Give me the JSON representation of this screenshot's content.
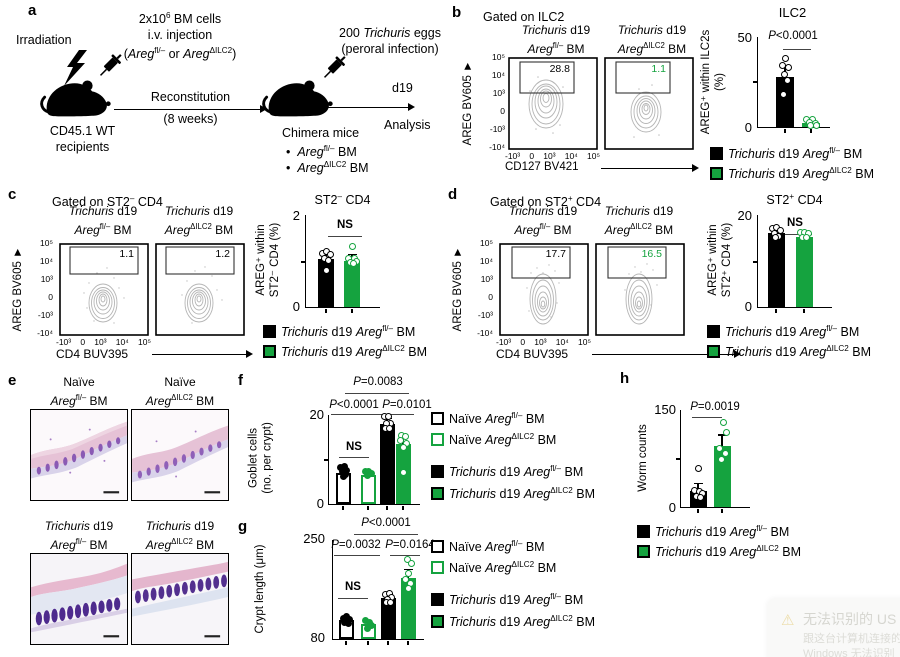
{
  "panel_labels": {
    "a": "a",
    "b": "b",
    "c": "c",
    "d": "d",
    "e": "e",
    "f": "f",
    "g": "g",
    "h": "h"
  },
  "colors": {
    "green": "#15a33f",
    "black": "#000000"
  },
  "panel_a": {
    "irradiation": "Irradiation",
    "injection": "2x10<sup>6</sup> BM cells<br>i.v. injection<br>(<i>Areg</i><sup>fl/–</sup> or <i>Areg</i><sup>ΔILC2</sup>)",
    "reconstitution_top": "Reconstitution",
    "reconstitution_bottom": "(8 weeks)",
    "recipients": "CD45.1 WT<br>recipients",
    "eggs": "200 <i>Trichuris</i> eggs<br>(peroral infection)",
    "d19": "d19",
    "analysis": "Analysis",
    "chimera_title": "Chimera mice",
    "chimera_bullet": "•",
    "chimera_item1": "<i>Areg</i><sup>fl/–</sup> BM",
    "chimera_item2": "<i>Areg</i><sup>ΔILC2</sup> BM"
  },
  "flow_titles": {
    "fl": "<i>Trichuris</i> d19<br><i>Areg</i><sup>fl/–</sup> BM",
    "dilc2": "<i>Trichuris</i> d19<br><i>Areg</i><sup>ΔILC2</sup> BM"
  },
  "panel_b": {
    "gated": "Gated on ILC2",
    "gate_fl": "28.8",
    "gate_dilc2": "1.1",
    "ylabel": "AREG BV605 ►",
    "xlabel": "CD127 BV421",
    "yticks": [
      "10⁵",
      "10⁴",
      "10³",
      "0",
      "-10³",
      "-10⁴"
    ],
    "xticks": [
      "-10³",
      "0",
      "10³",
      "10⁴",
      "10⁵"
    ]
  },
  "panel_c": {
    "gated": "Gated on ST2<sup>–</sup> CD4",
    "gate_fl": "1.1",
    "gate_dilc2": "1.2",
    "ylabel": "AREG BV605 ►",
    "xlabel": "CD4 BUV395",
    "yticks": [
      "10⁵",
      "10⁴",
      "10³",
      "0",
      "-10³",
      "-10⁴"
    ],
    "xticks": [
      "-10³",
      "0",
      "10³",
      "10⁴",
      "10⁵"
    ]
  },
  "panel_d": {
    "gated": "Gated on ST2<sup>+</sup> CD4",
    "gate_fl": "17.7",
    "gate_dilc2": "16.5",
    "ylabel": "AREG BV605 ►",
    "xlabel": "CD4 BUV395",
    "yticks": [
      "10⁵",
      "10⁴",
      "10³",
      "0",
      "-10³",
      "-10⁴"
    ],
    "xticks": [
      "-10³",
      "0",
      "10³",
      "10⁴",
      "10⁵"
    ]
  },
  "panel_e": {
    "title_naive_fl": "Naïve<br><i>Areg</i><sup>fl/–</sup> BM",
    "title_naive_dilc2": "Naïve<br><i>Areg</i><sup>ΔILC2</sup> BM",
    "title_tri_fl": "<i>Trichuris</i> d19<br><i>Areg</i><sup>fl/–</sup> BM",
    "title_tri_dilc2": "<i>Trichuris</i> d19<br><i>Areg</i><sup>ΔILC2</sup> BM"
  },
  "legend2": {
    "black": "<i>Trichuris</i> d19 <i>Areg</i><sup>fl/–</sup> BM",
    "green": "<i>Trichuris</i> d19 <i>Areg</i><sup>ΔILC2</sup> BM"
  },
  "legend4": {
    "naive_black": "Naïve <i>Areg</i><sup>fl/–</sup> BM",
    "naive_green": "Naïve <i>Areg</i><sup>ΔILC2</sup> BM",
    "tri_black": "<i>Trichuris</i> d19 <i>Areg</i><sup>fl/–</sup> BM",
    "tri_green": "<i>Trichuris</i> d19 <i>Areg</i><sup>ΔILC2</sup> BM"
  },
  "chart_data": {
    "b": {
      "type": "bar",
      "title": "ILC2",
      "ylabel": "AREG⁺ within ILC2s<br>(%)",
      "ylim": [
        0,
        50
      ],
      "yticks": [
        "50",
        "0"
      ],
      "sig": "<i>P</i>&lt;0.0001",
      "categories": [
        "Trichuris d19 Areg fl/- BM",
        "Trichuris d19 Areg dILC2 BM"
      ],
      "values": [
        28,
        1.5
      ],
      "centers": [
        27,
        53
      ],
      "barw": 18,
      "bars": [
        {
          "value": 28,
          "err": 33,
          "fill": "#000000",
          "stroke": "#000000",
          "dotFill": "#ffffff",
          "dotStroke": "#000000",
          "dots": [
            [
              0,
              38
            ],
            [
              -3,
              34
            ],
            [
              3,
              33
            ],
            [
              -1,
              29
            ],
            [
              2,
              26
            ],
            [
              -2,
              18
            ]
          ]
        },
        {
          "value": 1.5,
          "err": null,
          "fill": "#15a33f",
          "stroke": "#15a33f",
          "dotFill": "#ffffff",
          "dotStroke": "#15a33f",
          "dots": [
            [
              -5,
              4
            ],
            [
              1,
              4
            ],
            [
              -2,
              2.5
            ],
            [
              4,
              2
            ],
            [
              -1,
              1
            ],
            [
              5,
              1
            ]
          ]
        }
      ]
    },
    "c": {
      "type": "bar",
      "title": "ST2<sup>–</sup> CD4",
      "ylabel": "AREG⁺ within<br>ST2⁻ CD4 (%)",
      "ylim": [
        0,
        2
      ],
      "yticks": [
        "2",
        "0"
      ],
      "sig": "NS",
      "categories": [
        "Trichuris d19 Areg fl/- BM",
        "Trichuris d19 Areg dILC2 BM"
      ],
      "values": [
        1.05,
        1.0
      ],
      "centers": [
        20,
        46
      ],
      "barw": 16,
      "bars": [
        {
          "value": 1.05,
          "err": 1.16,
          "fill": "#000000",
          "stroke": "#000000",
          "dotFill": "#ffffff",
          "dotStroke": "#000000",
          "dots": [
            [
              -4,
              1.17
            ],
            [
              0,
              1.2
            ],
            [
              4,
              1.14
            ],
            [
              -2,
              1.06
            ],
            [
              2,
              1.02
            ],
            [
              0,
              0.8
            ]
          ]
        },
        {
          "value": 1.0,
          "err": 1.12,
          "fill": "#15a33f",
          "stroke": "#15a33f",
          "dotFill": "#ffffff",
          "dotStroke": "#15a33f",
          "dots": [
            [
              0,
              1.32
            ],
            [
              -4,
              1.06
            ],
            [
              2,
              1.06
            ],
            [
              4,
              1.0
            ],
            [
              -2,
              0.97
            ],
            [
              1,
              0.95
            ]
          ]
        }
      ]
    },
    "d": {
      "type": "bar",
      "title": "ST2<sup>+</sup> CD4",
      "ylabel": "AREG⁺ within<br>ST2⁺ CD4 (%)",
      "ylim": [
        0,
        20
      ],
      "yticks": [
        "20",
        "0"
      ],
      "sig": "NS",
      "categories": [
        "Trichuris d19 Areg fl/- BM",
        "Trichuris d19 Areg dILC2 BM"
      ],
      "values": [
        16,
        15.3
      ],
      "centers": [
        18,
        46
      ],
      "barw": 17,
      "bars": [
        {
          "value": 16,
          "err": 16.9,
          "fill": "#000000",
          "stroke": "#000000",
          "dotFill": "#ffffff",
          "dotStroke": "#000000",
          "dots": [
            [
              -4,
              17
            ],
            [
              0,
              17.2
            ],
            [
              4,
              16.6
            ],
            [
              -2,
              16
            ],
            [
              2,
              15.4
            ],
            [
              -1,
              15.2
            ]
          ]
        },
        {
          "value": 15.3,
          "err": 15.9,
          "fill": "#15a33f",
          "stroke": "#15a33f",
          "dotFill": "#ffffff",
          "dotStroke": "#15a33f",
          "dots": [
            [
              -4,
              16.1
            ],
            [
              0,
              16.1
            ],
            [
              4,
              15.9
            ],
            [
              -2,
              15.1
            ],
            [
              2,
              15.1
            ]
          ]
        }
      ]
    },
    "f": {
      "type": "bar",
      "title": "",
      "ylabel": "Goblet cells<br>(no. per crypt)",
      "ylim": [
        0,
        20
      ],
      "yticks": [
        "20",
        "0"
      ],
      "sig_top": "<i>P</i>=0.0083",
      "sig_left": "<i>P</i>&lt;0.0001",
      "sig_right": "<i>P</i>=0.0101",
      "ns": "NS",
      "categories": [
        "Naive Areg fl/- BM",
        "Naive Areg dILC2 BM",
        "Trichuris d19 Areg fl/- BM",
        "Trichuris d19 Areg dILC2 BM"
      ],
      "values": [
        7,
        6.5,
        18,
        13.5
      ],
      "centers": [
        14,
        39,
        58,
        74
      ],
      "barw": 15,
      "bars": [
        {
          "value": 7,
          "err": null,
          "fill": "#ffffff",
          "stroke": "#000000",
          "dotFill": "#000000",
          "dotStroke": "#000000",
          "dots": [
            [
              -3,
              8.2
            ],
            [
              1,
              8.4
            ],
            [
              3,
              7.6
            ],
            [
              -1,
              7.2
            ],
            [
              2,
              6.6
            ],
            [
              0,
              6.2
            ]
          ]
        },
        {
          "value": 6.5,
          "err": null,
          "fill": "#ffffff",
          "stroke": "#15a33f",
          "dotFill": "#15a33f",
          "dotStroke": "#15a33f",
          "dots": [
            [
              -3,
              7.2
            ],
            [
              0,
              7.3
            ],
            [
              3,
              6.8
            ],
            [
              -1,
              6.3
            ]
          ]
        },
        {
          "value": 18,
          "err": 19,
          "fill": "#000000",
          "stroke": "#000000",
          "dotFill": "#ffffff",
          "dotStroke": "#000000",
          "dots": [
            [
              -3,
              19.6
            ],
            [
              1,
              19.7
            ],
            [
              3,
              18.2
            ],
            [
              -1,
              18
            ],
            [
              -2,
              17
            ],
            [
              2,
              17
            ]
          ]
        },
        {
          "value": 13.5,
          "err": 15,
          "fill": "#15a33f",
          "stroke": "#15a33f",
          "dotFill": "#ffffff",
          "dotStroke": "#15a33f",
          "dots": [
            [
              -2,
              15.3
            ],
            [
              2,
              15.2
            ],
            [
              -3,
              14.2
            ],
            [
              3,
              13.6
            ],
            [
              0,
              12.6
            ],
            [
              0,
              7
            ]
          ]
        }
      ]
    },
    "g": {
      "type": "bar",
      "title": "",
      "ylabel": "Crypt length (μm)",
      "ylim": [
        80,
        250
      ],
      "yticks": [
        "250",
        "80"
      ],
      "sig_top": "<i>P</i>&lt;0.0001",
      "sig_left": "<i>P</i>=0.0032",
      "sig_right": "<i>P</i>=0.0164",
      "ns": "NS",
      "categories": [
        "Naive Areg fl/- BM",
        "Naive Areg dILC2 BM",
        "Trichuris d19 Areg fl/- BM",
        "Trichuris d19 Areg dILC2 BM"
      ],
      "values": [
        112,
        105,
        150,
        185
      ],
      "centers": [
        13,
        35,
        55,
        75
      ],
      "barw": 15,
      "bars": [
        {
          "value": 112,
          "err": null,
          "fill": "#ffffff",
          "stroke": "#000000",
          "dotFill": "#000000",
          "dotStroke": "#000000",
          "dots": [
            [
              -3,
              116
            ],
            [
              0,
              118
            ],
            [
              3,
              114
            ],
            [
              -2,
              108
            ],
            [
              2,
              106
            ]
          ]
        },
        {
          "value": 105,
          "err": null,
          "fill": "#ffffff",
          "stroke": "#15a33f",
          "dotFill": "#15a33f",
          "dotStroke": "#15a33f",
          "dots": [
            [
              -3,
              111
            ],
            [
              1,
              109
            ],
            [
              3,
              104
            ],
            [
              -1,
              98
            ]
          ]
        },
        {
          "value": 150,
          "err": 156,
          "fill": "#000000",
          "stroke": "#000000",
          "dotFill": "#ffffff",
          "dotStroke": "#000000",
          "dots": [
            [
              -3,
              157
            ],
            [
              1,
              159
            ],
            [
              3,
              151
            ],
            [
              -1,
              148
            ],
            [
              -2,
              143
            ],
            [
              2,
              142
            ]
          ]
        },
        {
          "value": 185,
          "err": 198,
          "fill": "#15a33f",
          "stroke": "#15a33f",
          "dotFill": "#ffffff",
          "dotStroke": "#15a33f",
          "dots": [
            [
              -1,
              216
            ],
            [
              3,
              210
            ],
            [
              0,
              192
            ],
            [
              -3,
              182
            ],
            [
              2,
              176
            ],
            [
              0,
              166
            ]
          ]
        }
      ]
    },
    "h": {
      "type": "bar",
      "title": "",
      "ylabel": "Worm counts",
      "ylim": [
        0,
        150
      ],
      "yticks": [
        "150",
        "0"
      ],
      "sig": "<i>P</i>=0.0019",
      "categories": [
        "Trichuris d19 Areg fl/- BM",
        "Trichuris d19 Areg dILC2 BM"
      ],
      "values": [
        25,
        95
      ],
      "centers": [
        17,
        41
      ],
      "barw": 17,
      "bars": [
        {
          "value": 25,
          "err": 35,
          "fill": "#000000",
          "stroke": "#000000",
          "dotFill": "#ffffff",
          "dotStroke": "#000000",
          "dots": [
            [
              0,
              60
            ],
            [
              -4,
              26
            ],
            [
              1,
              24
            ],
            [
              4,
              21
            ],
            [
              -2,
              17
            ],
            [
              2,
              14
            ]
          ]
        },
        {
          "value": 95,
          "err": 110,
          "fill": "#15a33f",
          "stroke": "#15a33f",
          "dotFill": "#ffffff",
          "dotStroke": "#15a33f",
          "dots": [
            [
              1,
              130
            ],
            [
              4,
              116
            ],
            [
              -3,
              90
            ],
            [
              3,
              82
            ],
            [
              -1,
              74
            ]
          ]
        }
      ]
    }
  },
  "notification": {
    "warn_icon": "⚠",
    "title": "无法识别的 US",
    "line1": "跟这台计算机连接的",
    "line2": "Windows 无法识别"
  }
}
